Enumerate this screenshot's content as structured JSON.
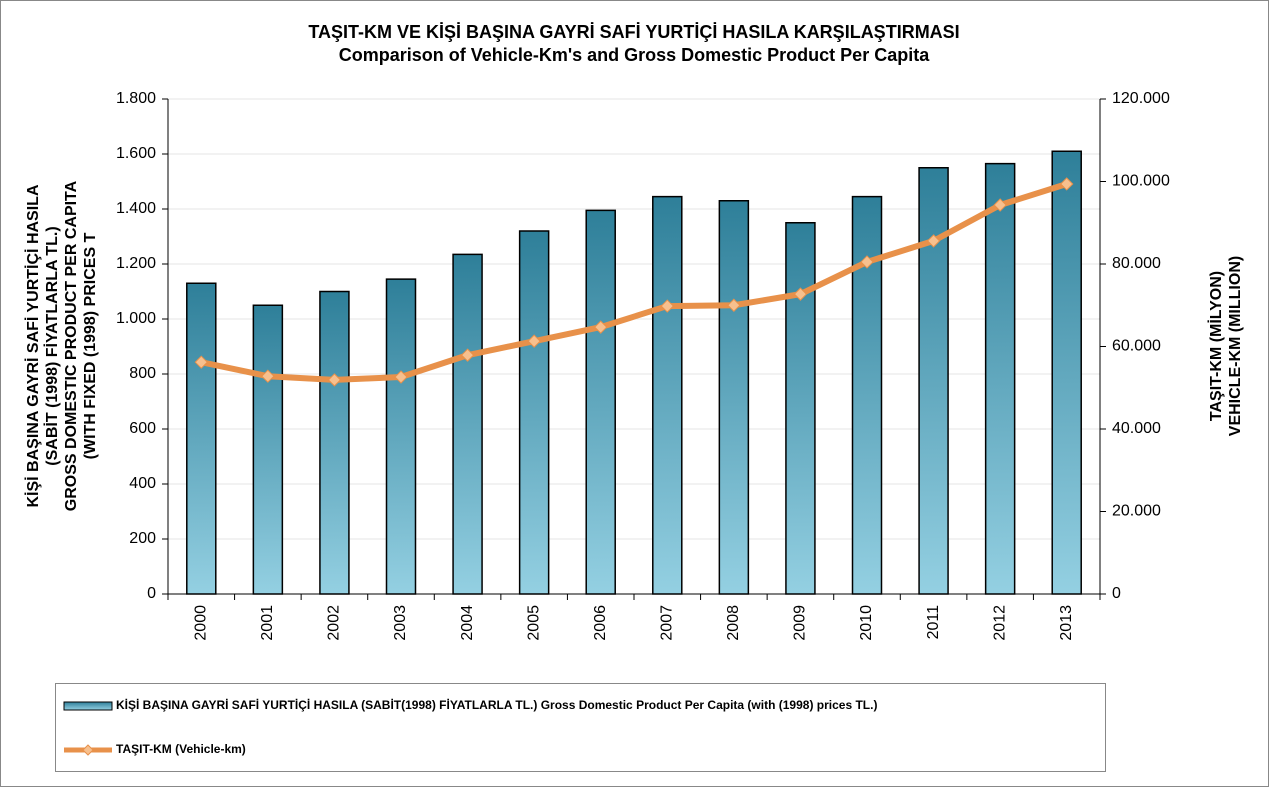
{
  "chart_data": {
    "type": "bar",
    "title": "TAŞIT-KM VE KİŞİ BAŞINA GAYRİ SAFİ YURTİÇİ HASILA KARŞILAŞTIRMASI",
    "subtitle": "Comparison of Vehicle-Km's and Gross Domestic Product Per Capita",
    "y_label": [
      "KİŞİ BAŞINA GAYRİ SAFİ YURTİÇİ HASILA",
      "(SABİT (1998) FİYATLARLA TL.)",
      "GROSS DOMESTIC PRODUCT PER CAPITA",
      "(WITH FIXED (1998) PRICES T"
    ],
    "y2_label": [
      "TAŞIT-KM (MİLYON)",
      "VEHICLE-KM (MILLION)"
    ],
    "categories": [
      "2000",
      "2001",
      "2002",
      "2003",
      "2004",
      "2005",
      "2006",
      "2007",
      "2008",
      "2009",
      "2010",
      "2011",
      "2012",
      "2013"
    ],
    "series": [
      {
        "name": "KİŞİ BAŞINA GAYRİ SAFİ YURTİÇİ HASILA (SABİT(1998) FİYATLARLA TL.) Gross Domestic Product Per Capita (with (1998) prices TL.)",
        "type": "bar",
        "color": "#2e7f99",
        "values": [
          1130,
          1050,
          1100,
          1145,
          1235,
          1320,
          1395,
          1445,
          1430,
          1350,
          1445,
          1550,
          1565,
          1610
        ]
      },
      {
        "name": "TAŞIT-KM (Vehicle-km)",
        "type": "line",
        "axis": "y2",
        "color": "#e8914a",
        "values": [
          56200,
          52800,
          51900,
          52600,
          57900,
          61300,
          64700,
          69800,
          70000,
          72700,
          80500,
          85600,
          94300,
          99400
        ]
      }
    ],
    "ylim": [
      0,
      1800
    ],
    "yticks": [
      0,
      200,
      400,
      600,
      800,
      {
        "value": 1000,
        "label": "1.000"
      },
      {
        "value": 1200,
        "label": "1.200"
      },
      {
        "value": 1400,
        "label": "1.400"
      },
      {
        "value": 1600,
        "label": "1.600"
      },
      {
        "value": 1800,
        "label": "1.800"
      }
    ],
    "y2lim": [
      0,
      120000
    ],
    "y2ticks": [
      0,
      {
        "value": 20000,
        "label": "20.000"
      },
      {
        "value": 40000,
        "label": "40.000"
      },
      {
        "value": 60000,
        "label": "60.000"
      },
      {
        "value": 80000,
        "label": "80.000"
      },
      {
        "value": 100000,
        "label": "100.000"
      },
      {
        "value": 120000,
        "label": "120.000"
      }
    ],
    "grid": true,
    "legend": "bottom"
  }
}
